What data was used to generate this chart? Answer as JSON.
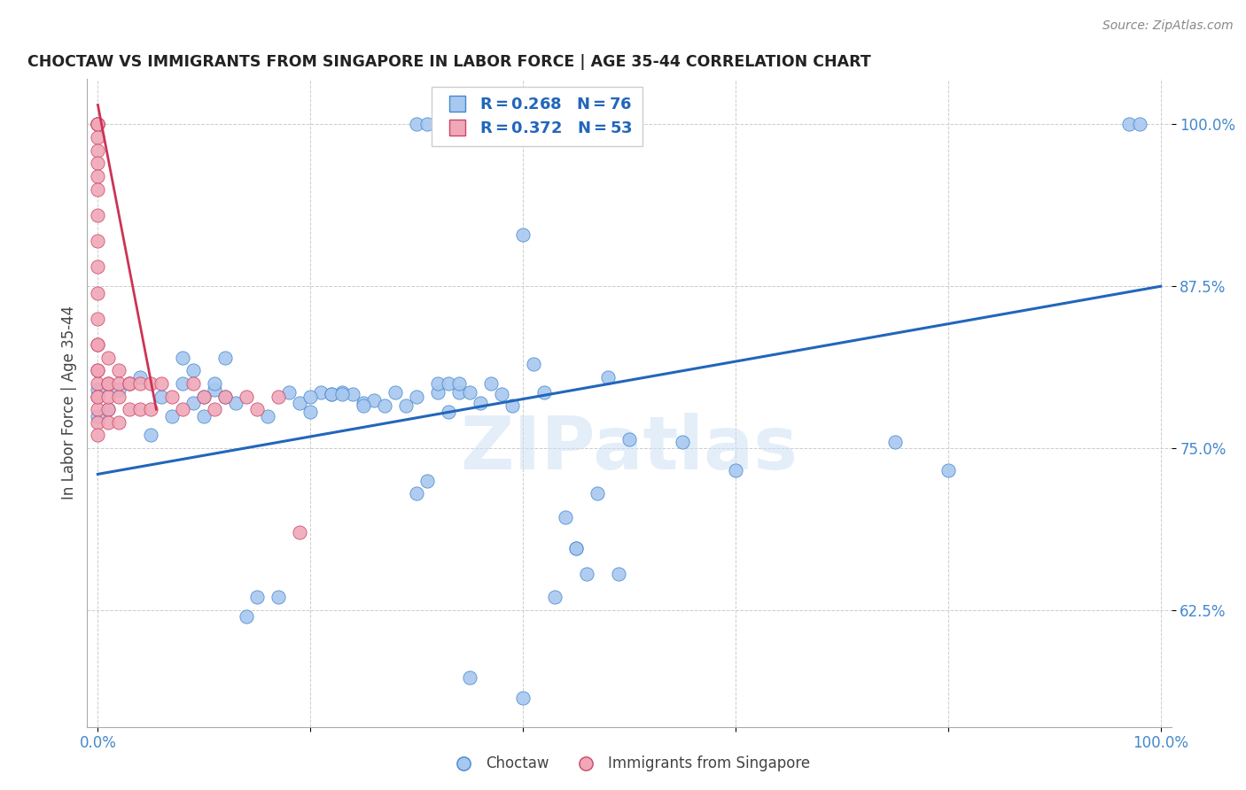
{
  "title": "CHOCTAW VS IMMIGRANTS FROM SINGAPORE IN LABOR FORCE | AGE 35-44 CORRELATION CHART",
  "source": "Source: ZipAtlas.com",
  "ylabel": "In Labor Force | Age 35-44",
  "xlim": [
    -0.01,
    1.01
  ],
  "ylim": [
    0.535,
    1.035
  ],
  "xticks": [
    0.0,
    0.2,
    0.4,
    0.6,
    0.8,
    1.0
  ],
  "xticklabels": [
    "0.0%",
    "",
    "",
    "",
    "",
    "100.0%"
  ],
  "yticks": [
    0.625,
    0.75,
    0.875,
    1.0
  ],
  "yticklabels": [
    "62.5%",
    "75.0%",
    "87.5%",
    "100.0%"
  ],
  "blue_color": "#a8c8f0",
  "pink_color": "#f0a8b8",
  "blue_edge_color": "#4488cc",
  "pink_edge_color": "#cc4466",
  "blue_line_color": "#2266bb",
  "pink_line_color": "#cc3355",
  "legend_label_blue": "Choctaw",
  "legend_label_pink": "Immigrants from Singapore",
  "watermark": "ZIPatlas",
  "blue_line_x0": 0.0,
  "blue_line_y0": 0.73,
  "blue_line_x1": 1.0,
  "blue_line_y1": 0.875,
  "pink_line_x0": 0.0,
  "pink_line_y0": 1.015,
  "pink_line_x1": 0.055,
  "pink_line_y1": 0.78,
  "blue_scatter_x": [
    0.0,
    0.0,
    0.01,
    0.02,
    0.03,
    0.04,
    0.05,
    0.06,
    0.07,
    0.08,
    0.09,
    0.1,
    0.11,
    0.12,
    0.13,
    0.14,
    0.15,
    0.16,
    0.17,
    0.18,
    0.19,
    0.2,
    0.21,
    0.22,
    0.23,
    0.24,
    0.25,
    0.26,
    0.27,
    0.28,
    0.29,
    0.3,
    0.31,
    0.32,
    0.33,
    0.34,
    0.35,
    0.36,
    0.37,
    0.38,
    0.39,
    0.4,
    0.41,
    0.42,
    0.43,
    0.44,
    0.45,
    0.46,
    0.47,
    0.48,
    0.49,
    0.5,
    0.32,
    0.33,
    0.34,
    0.22,
    0.23,
    0.08,
    0.09,
    0.1,
    0.11,
    0.12,
    0.55,
    0.6,
    0.75,
    0.8,
    0.97,
    0.98,
    0.3,
    0.31,
    0.35,
    0.4,
    0.45,
    0.2,
    0.25,
    0.3
  ],
  "blue_scatter_y": [
    0.775,
    0.795,
    0.78,
    0.795,
    0.8,
    0.805,
    0.76,
    0.79,
    0.775,
    0.8,
    0.785,
    0.775,
    0.795,
    0.79,
    0.785,
    0.62,
    0.635,
    0.775,
    0.635,
    0.793,
    0.785,
    0.778,
    0.793,
    0.792,
    0.793,
    0.792,
    0.785,
    0.787,
    0.783,
    0.793,
    0.783,
    0.715,
    0.725,
    0.793,
    0.778,
    0.793,
    0.793,
    0.785,
    0.8,
    0.792,
    0.783,
    0.915,
    0.815,
    0.793,
    0.635,
    0.697,
    0.673,
    0.653,
    0.715,
    0.805,
    0.653,
    0.757,
    0.8,
    0.8,
    0.8,
    0.792,
    0.792,
    0.82,
    0.81,
    0.79,
    0.8,
    0.82,
    0.755,
    0.733,
    0.755,
    0.733,
    1.0,
    1.0,
    1.0,
    1.0,
    0.573,
    0.557,
    0.673,
    0.79,
    0.783,
    0.79
  ],
  "pink_scatter_x": [
    0.0,
    0.0,
    0.0,
    0.0,
    0.0,
    0.0,
    0.0,
    0.0,
    0.0,
    0.0,
    0.0,
    0.0,
    0.0,
    0.0,
    0.0,
    0.0,
    0.0,
    0.0,
    0.0,
    0.0,
    0.0,
    0.0,
    0.0,
    0.0,
    0.0,
    0.01,
    0.01,
    0.01,
    0.01,
    0.01,
    0.01,
    0.02,
    0.02,
    0.02,
    0.02,
    0.03,
    0.03,
    0.03,
    0.04,
    0.04,
    0.05,
    0.05,
    0.06,
    0.07,
    0.08,
    0.09,
    0.1,
    0.11,
    0.12,
    0.14,
    0.15,
    0.17,
    0.19
  ],
  "pink_scatter_y": [
    1.0,
    1.0,
    1.0,
    1.0,
    1.0,
    0.99,
    0.98,
    0.97,
    0.96,
    0.95,
    0.93,
    0.91,
    0.89,
    0.87,
    0.85,
    0.83,
    0.81,
    0.8,
    0.79,
    0.78,
    0.77,
    0.76,
    0.83,
    0.81,
    0.79,
    0.82,
    0.8,
    0.78,
    0.79,
    0.77,
    0.8,
    0.81,
    0.79,
    0.77,
    0.8,
    0.8,
    0.78,
    0.8,
    0.8,
    0.78,
    0.8,
    0.78,
    0.8,
    0.79,
    0.78,
    0.8,
    0.79,
    0.78,
    0.79,
    0.79,
    0.78,
    0.79,
    0.685
  ]
}
